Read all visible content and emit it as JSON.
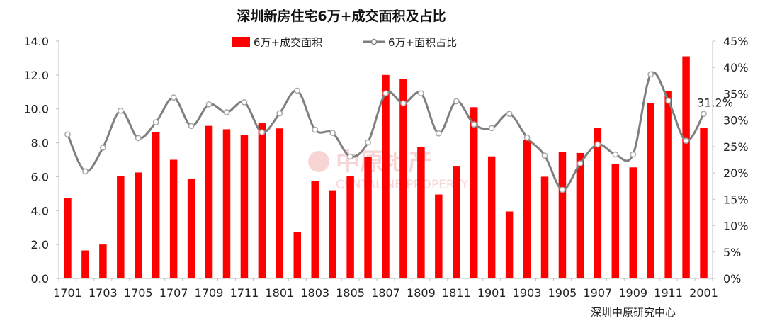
{
  "chart_data": {
    "type": "bar+line",
    "title": "深圳新房住宅6万+成交面积及占比",
    "source": "深圳中原研究中心",
    "watermark": {
      "main": "中原地产",
      "sub": "CENTALINE PROPERTY"
    },
    "categories": [
      "1701",
      "1702",
      "1703",
      "1704",
      "1705",
      "1706",
      "1707",
      "1708",
      "1709",
      "1710",
      "1711",
      "1712",
      "1801",
      "1802",
      "1803",
      "1804",
      "1805",
      "1806",
      "1807",
      "1808",
      "1809",
      "1810",
      "1811",
      "1812",
      "1901",
      "1902",
      "1903",
      "1904",
      "1905",
      "1906",
      "1907",
      "1908",
      "1909",
      "1910",
      "1911",
      "1912",
      "2001"
    ],
    "x_tick_labels": [
      "1701",
      "1703",
      "1705",
      "1707",
      "1709",
      "1711",
      "1801",
      "1803",
      "1805",
      "1807",
      "1809",
      "1811",
      "1901",
      "1903",
      "1905",
      "1907",
      "1909",
      "1911",
      "2001"
    ],
    "series": [
      {
        "name": "6万+成交面积",
        "type": "bar",
        "axis": "left",
        "color": "#ff0000",
        "values": [
          4.75,
          1.65,
          2.0,
          6.05,
          6.25,
          8.65,
          7.0,
          5.85,
          9.0,
          8.8,
          8.45,
          9.15,
          8.85,
          2.75,
          5.75,
          5.2,
          6.05,
          7.15,
          12.0,
          11.75,
          7.75,
          4.95,
          6.6,
          10.1,
          7.2,
          3.95,
          8.15,
          6.0,
          7.45,
          7.4,
          8.9,
          6.75,
          6.55,
          10.35,
          11.05,
          13.1,
          8.9
        ]
      },
      {
        "name": "6万+面积占比",
        "type": "line",
        "axis": "right",
        "color": "#7f7f7f",
        "marker": "hollow-circle",
        "values": [
          27.3,
          20.3,
          24.8,
          31.8,
          26.6,
          29.6,
          34.3,
          28.9,
          33.0,
          31.5,
          33.4,
          27.7,
          31.3,
          35.6,
          28.2,
          27.6,
          23.1,
          25.8,
          35.1,
          33.2,
          35.1,
          27.5,
          33.6,
          29.2,
          28.5,
          31.2,
          26.7,
          23.3,
          16.8,
          21.8,
          25.4,
          23.5,
          23.5,
          38.7,
          33.7,
          26.1,
          31.2
        ]
      }
    ],
    "left_axis": {
      "min": 0,
      "max": 14,
      "step": 2,
      "tick_labels": [
        "0.0",
        "2.0",
        "4.0",
        "6.0",
        "8.0",
        "10.0",
        "12.0",
        "14.0"
      ]
    },
    "right_axis": {
      "min": 0,
      "max": 45,
      "step": 5,
      "tick_labels": [
        "0%",
        "5%",
        "10%",
        "15%",
        "20%",
        "25%",
        "30%",
        "35%",
        "40%",
        "45%"
      ]
    },
    "data_labels": [
      {
        "series": "6万+面积占比",
        "category": "2001",
        "text": "31.2%"
      }
    ],
    "legend": {
      "position": "top-center",
      "bar_label": "6万+成交面积",
      "line_label": "6万+面积占比"
    },
    "grid": false
  }
}
